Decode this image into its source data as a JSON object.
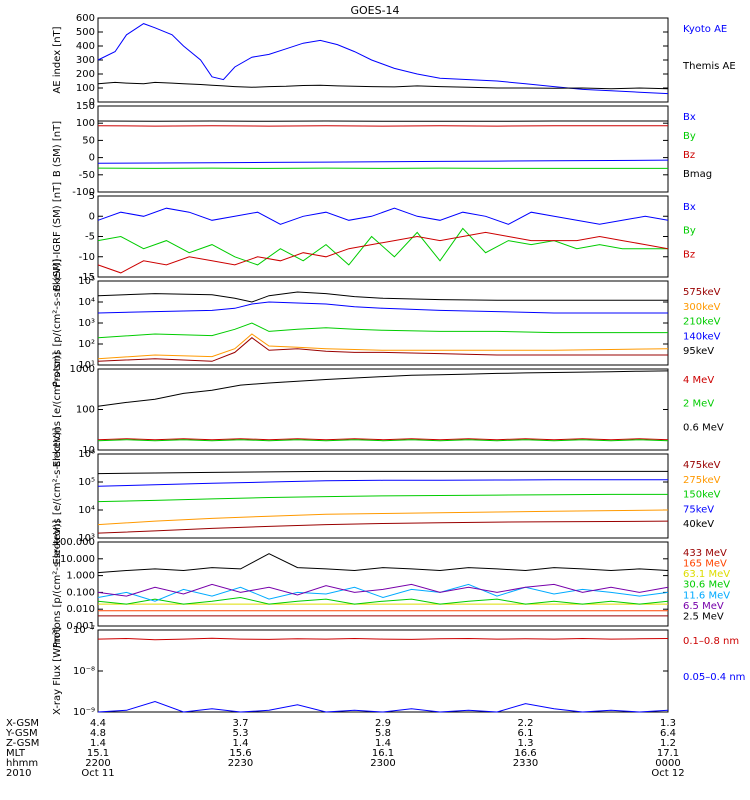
{
  "title": "GOES-14",
  "colors": {
    "black": "#000000",
    "red": "#cc0000",
    "green": "#00cc00",
    "blue": "#0000ff",
    "orange": "#ff9900",
    "cyan": "#00aaff",
    "yellow": "#dddd00",
    "purple": "#7700aa",
    "darkred": "#990000",
    "lightred": "#ff4400"
  },
  "chart_data": [
    {
      "type": "line",
      "panel": "ae",
      "ylabel": "AE index [nT]",
      "ylim": [
        0,
        600
      ],
      "yticks": [
        "600",
        "500",
        "400",
        "300",
        "200",
        "100",
        "0"
      ],
      "x": [
        0.0,
        0.03,
        0.05,
        0.08,
        0.1,
        0.13,
        0.15,
        0.18,
        0.2,
        0.22,
        0.24,
        0.27,
        0.3,
        0.33,
        0.36,
        0.39,
        0.42,
        0.45,
        0.48,
        0.52,
        0.56,
        0.6,
        0.65,
        0.7,
        0.75,
        0.8,
        0.85,
        0.9,
        0.95,
        1.0
      ],
      "series": [
        {
          "name": "Kyoto AE",
          "color": "blue",
          "values": [
            300,
            360,
            480,
            560,
            530,
            480,
            400,
            300,
            180,
            160,
            250,
            320,
            340,
            380,
            420,
            440,
            410,
            360,
            300,
            240,
            200,
            170,
            160,
            150,
            130,
            110,
            90,
            80,
            70,
            60
          ]
        },
        {
          "name": "Themis AE",
          "color": "black",
          "values": [
            130,
            140,
            135,
            130,
            140,
            135,
            130,
            125,
            120,
            115,
            110,
            105,
            110,
            112,
            118,
            120,
            115,
            112,
            110,
            108,
            115,
            110,
            105,
            100,
            100,
            98,
            100,
            95,
            100,
            95
          ]
        }
      ]
    },
    {
      "type": "line",
      "panel": "b",
      "ylabel": "B (SM) [nT]",
      "ylim": [
        -120,
        150
      ],
      "yticks": [
        "150",
        "100",
        "50",
        "0",
        "-50",
        "-100"
      ],
      "x": [
        0,
        0.1,
        0.2,
        0.3,
        0.4,
        0.5,
        0.6,
        0.7,
        0.8,
        0.9,
        1.0
      ],
      "series": [
        {
          "name": "Bx",
          "color": "blue",
          "values": [
            -30,
            -29,
            -28,
            -27,
            -26,
            -25,
            -24,
            -23,
            -22,
            -21,
            -20
          ]
        },
        {
          "name": "By",
          "color": "green",
          "values": [
            -45,
            -46,
            -45,
            -46,
            -45,
            -46,
            -45,
            -46,
            -46,
            -46,
            -46
          ]
        },
        {
          "name": "Bz",
          "color": "red",
          "values": [
            88,
            87,
            88,
            87,
            88,
            87,
            88,
            87,
            88,
            88,
            88
          ]
        },
        {
          "name": "Bmag",
          "color": "black",
          "values": [
            103,
            102,
            103,
            102,
            103,
            102,
            102,
            102,
            103,
            103,
            103
          ]
        }
      ]
    },
    {
      "type": "line",
      "panel": "dbfield",
      "ylabel": "B (SM)-IGRF (SM) [nT]",
      "ylim": [
        -15,
        5
      ],
      "yticks": [
        "5",
        "0",
        "-5",
        "-10",
        "-15"
      ],
      "x": [
        0.0,
        0.04,
        0.08,
        0.12,
        0.16,
        0.2,
        0.24,
        0.28,
        0.32,
        0.36,
        0.4,
        0.44,
        0.48,
        0.52,
        0.56,
        0.6,
        0.64,
        0.68,
        0.72,
        0.76,
        0.8,
        0.84,
        0.88,
        0.92,
        0.96,
        1.0
      ],
      "series": [
        {
          "name": "Bx",
          "color": "blue",
          "values": [
            -1,
            1,
            0,
            2,
            1,
            -1,
            0,
            1,
            -2,
            0,
            1,
            -1,
            0,
            2,
            0,
            -1,
            1,
            0,
            -2,
            1,
            0,
            -1,
            -2,
            -1,
            0,
            -1
          ]
        },
        {
          "name": "By",
          "color": "green",
          "values": [
            -6,
            -5,
            -8,
            -6,
            -9,
            -7,
            -10,
            -12,
            -8,
            -11,
            -7,
            -12,
            -5,
            -10,
            -4,
            -11,
            -3,
            -9,
            -6,
            -7,
            -6,
            -8,
            -7,
            -8,
            -8,
            -8
          ]
        },
        {
          "name": "Bz",
          "color": "red",
          "values": [
            -12,
            -14,
            -11,
            -12,
            -10,
            -11,
            -12,
            -10,
            -11,
            -9,
            -10,
            -8,
            -7,
            -6,
            -5,
            -6,
            -5,
            -4,
            -5,
            -6,
            -6,
            -6,
            -5,
            -6,
            -7,
            -8
          ]
        }
      ]
    },
    {
      "type": "line",
      "panel": "protons1",
      "ylabel": "Protons [p/(cm²-s-sr-keV)]",
      "yscale": "log",
      "ylim": [
        10,
        100000
      ],
      "yticks": [
        "10⁵",
        "10⁴",
        "10³",
        "10²",
        "10¹"
      ],
      "x": [
        0.0,
        0.1,
        0.2,
        0.24,
        0.27,
        0.3,
        0.35,
        0.4,
        0.45,
        0.5,
        0.6,
        0.7,
        0.8,
        0.9,
        1.0
      ],
      "series": [
        {
          "name": "575keV",
          "color": "darkred",
          "values": [
            15,
            20,
            15,
            40,
            200,
            50,
            60,
            45,
            40,
            40,
            35,
            30,
            30,
            30,
            30
          ]
        },
        {
          "name": "300keV",
          "color": "orange",
          "values": [
            20,
            30,
            25,
            60,
            300,
            80,
            70,
            60,
            55,
            50,
            50,
            50,
            50,
            55,
            60
          ]
        },
        {
          "name": "210keV",
          "color": "green",
          "values": [
            200,
            300,
            250,
            500,
            1000,
            400,
            500,
            600,
            500,
            450,
            400,
            400,
            350,
            350,
            350
          ]
        },
        {
          "name": "140keV",
          "color": "blue",
          "values": [
            3000,
            3500,
            4000,
            5000,
            8000,
            10000,
            9000,
            8000,
            6000,
            5000,
            4000,
            3500,
            3000,
            3000,
            3000
          ]
        },
        {
          "name": "95keV",
          "color": "black",
          "values": [
            20000,
            25000,
            22000,
            15000,
            10000,
            20000,
            30000,
            25000,
            18000,
            15000,
            13000,
            12000,
            12000,
            12000,
            12000
          ]
        }
      ]
    },
    {
      "type": "line",
      "panel": "electrons1",
      "ylabel": "Electrons [e/(cm²-s-sr)]",
      "yscale": "log",
      "ylim": [
        10,
        1000
      ],
      "yticks": [
        "1000",
        "100",
        "10"
      ],
      "x": [
        0.0,
        0.05,
        0.1,
        0.15,
        0.2,
        0.25,
        0.3,
        0.35,
        0.4,
        0.45,
        0.5,
        0.55,
        0.6,
        0.65,
        0.7,
        0.75,
        0.8,
        0.85,
        0.9,
        0.95,
        1.0
      ],
      "series": [
        {
          "name": "4 MeV",
          "color": "red",
          "values": [
            18,
            19,
            18,
            19,
            18,
            19,
            18,
            19,
            18,
            19,
            18,
            19,
            18,
            19,
            18,
            19,
            18,
            19,
            18,
            19,
            18
          ]
        },
        {
          "name": "2 MeV",
          "color": "green",
          "values": [
            17,
            18,
            17,
            18,
            17,
            18,
            17,
            18,
            17,
            18,
            17,
            18,
            17,
            18,
            17,
            18,
            17,
            18,
            17,
            18,
            17
          ]
        },
        {
          "name": "0.6 MeV",
          "color": "black",
          "values": [
            120,
            150,
            180,
            250,
            300,
            400,
            450,
            500,
            550,
            600,
            650,
            700,
            720,
            750,
            780,
            800,
            820,
            840,
            860,
            880,
            900
          ]
        }
      ]
    },
    {
      "type": "line",
      "panel": "electrons2",
      "ylabel": "Electrons [e/(cm²-s-sr-keV)]",
      "yscale": "log",
      "ylim": [
        1000,
        1000000
      ],
      "yticks": [
        "10⁶",
        "10⁵",
        "10⁴",
        "10³"
      ],
      "x": [
        0,
        0.1,
        0.2,
        0.3,
        0.4,
        0.5,
        0.6,
        0.7,
        0.8,
        0.9,
        1.0
      ],
      "series": [
        {
          "name": "475keV",
          "color": "darkred",
          "values": [
            1500,
            1800,
            2200,
            2600,
            3000,
            3300,
            3500,
            3700,
            3800,
            3900,
            4000
          ]
        },
        {
          "name": "275keV",
          "color": "orange",
          "values": [
            3000,
            4000,
            5000,
            6000,
            7000,
            7500,
            8000,
            8500,
            9000,
            9500,
            10000
          ]
        },
        {
          "name": "150keV",
          "color": "green",
          "values": [
            20000,
            22000,
            25000,
            28000,
            30000,
            32000,
            33000,
            34000,
            35000,
            36000,
            36000
          ]
        },
        {
          "name": "75keV",
          "color": "blue",
          "values": [
            70000,
            80000,
            90000,
            100000,
            110000,
            115000,
            115000,
            118000,
            120000,
            120000,
            120000
          ]
        },
        {
          "name": "40keV",
          "color": "black",
          "values": [
            200000,
            210000,
            220000,
            230000,
            240000,
            240000,
            240000,
            240000,
            240000,
            240000,
            240000
          ]
        }
      ]
    },
    {
      "type": "line",
      "panel": "protons2",
      "ylabel": "Protons [p/(cm²-s-sr-keV)]",
      "yscale": "log",
      "ylim": [
        0.001,
        100
      ],
      "yticks": [
        "100.000",
        "10.000",
        "1.000",
        "0.100",
        "0.010",
        "0.001"
      ],
      "x": [
        0.0,
        0.05,
        0.1,
        0.15,
        0.2,
        0.25,
        0.3,
        0.35,
        0.4,
        0.45,
        0.5,
        0.55,
        0.6,
        0.65,
        0.7,
        0.75,
        0.8,
        0.85,
        0.9,
        0.95,
        1.0
      ],
      "series": [
        {
          "name": "433 MeV",
          "color": "darkred",
          "values": [
            0.004,
            0.004,
            0.004,
            0.004,
            0.004,
            0.004,
            0.004,
            0.004,
            0.004,
            0.004,
            0.004,
            0.004,
            0.004,
            0.004,
            0.004,
            0.004,
            0.004,
            0.004,
            0.004,
            0.004,
            0.004
          ]
        },
        {
          "name": "165 MeV",
          "color": "lightred",
          "values": [
            0.008,
            0.008,
            0.008,
            0.008,
            0.008,
            0.008,
            0.008,
            0.008,
            0.008,
            0.008,
            0.008,
            0.008,
            0.008,
            0.008,
            0.008,
            0.008,
            0.008,
            0.008,
            0.008,
            0.008,
            0.008
          ]
        },
        {
          "name": "63.1 MeV",
          "color": "yellow",
          "values": [
            0.02,
            0.02,
            0.02,
            0.02,
            0.02,
            0.02,
            0.02,
            0.02,
            0.02,
            0.02,
            0.02,
            0.02,
            0.02,
            0.02,
            0.02,
            0.02,
            0.02,
            0.02,
            0.02,
            0.02,
            0.02
          ]
        },
        {
          "name": "30.6 MeV",
          "color": "green",
          "values": [
            0.03,
            0.02,
            0.04,
            0.02,
            0.03,
            0.05,
            0.02,
            0.03,
            0.04,
            0.02,
            0.03,
            0.04,
            0.02,
            0.03,
            0.04,
            0.02,
            0.03,
            0.02,
            0.03,
            0.02,
            0.03
          ]
        },
        {
          "name": "11.6 MeV",
          "color": "cyan",
          "values": [
            0.05,
            0.1,
            0.03,
            0.15,
            0.06,
            0.2,
            0.04,
            0.1,
            0.08,
            0.2,
            0.05,
            0.15,
            0.1,
            0.3,
            0.06,
            0.2,
            0.08,
            0.15,
            0.1,
            0.06,
            0.1
          ]
        },
        {
          "name": "6.5 MeV",
          "color": "purple",
          "values": [
            0.1,
            0.06,
            0.2,
            0.08,
            0.3,
            0.1,
            0.2,
            0.07,
            0.25,
            0.1,
            0.15,
            0.3,
            0.1,
            0.2,
            0.1,
            0.2,
            0.3,
            0.1,
            0.2,
            0.1,
            0.2
          ]
        },
        {
          "name": "2.5 MeV",
          "color": "black",
          "values": [
            1.5,
            2.0,
            2.5,
            2.0,
            3.0,
            2.5,
            20,
            3.0,
            2.5,
            2.0,
            3.0,
            2.5,
            2.0,
            3.0,
            2.5,
            2.0,
            3.0,
            2.5,
            2.0,
            2.5,
            2.0
          ]
        }
      ]
    },
    {
      "type": "line",
      "panel": "xray",
      "ylabel": "X-ray Flux [W/m²]",
      "yscale": "log",
      "ylim": [
        1e-09,
        1e-07
      ],
      "yticks": [
        "10⁻⁷",
        "10⁻⁸",
        "10⁻⁹"
      ],
      "x": [
        0.0,
        0.05,
        0.1,
        0.15,
        0.2,
        0.25,
        0.3,
        0.35,
        0.4,
        0.45,
        0.5,
        0.55,
        0.6,
        0.65,
        0.7,
        0.75,
        0.8,
        0.85,
        0.9,
        0.95,
        1.0
      ],
      "series": [
        {
          "name": "0.1–0.8 nm",
          "color": "red",
          "values": [
            6e-08,
            6.2e-08,
            5.8e-08,
            6e-08,
            6.3e-08,
            6e-08,
            5.9e-08,
            6.1e-08,
            6e-08,
            6.2e-08,
            6e-08,
            5.9e-08,
            6.1e-08,
            6.2e-08,
            6e-08,
            6.1e-08,
            6e-08,
            6.2e-08,
            6e-08,
            6.1e-08,
            6.2e-08
          ]
        },
        {
          "name": "0.05–0.4 nm",
          "color": "blue",
          "values": [
            1e-09,
            1.1e-09,
            1.8e-09,
            1e-09,
            1.2e-09,
            1e-09,
            1.1e-09,
            1.5e-09,
            1e-09,
            1.1e-09,
            1e-09,
            1.2e-09,
            1e-09,
            1.1e-09,
            1e-09,
            1.6e-09,
            1.2e-09,
            1e-09,
            1.1e-09,
            1e-09,
            1.1e-09
          ]
        }
      ]
    }
  ],
  "xaxis": {
    "rows": [
      {
        "label": "X-GSM",
        "values": [
          "4.4",
          "3.7",
          "2.9",
          "2.2",
          "1.3"
        ]
      },
      {
        "label": "Y-GSM",
        "values": [
          "4.8",
          "5.3",
          "5.8",
          "6.1",
          "6.4"
        ]
      },
      {
        "label": "Z-GSM",
        "values": [
          "1.4",
          "1.4",
          "1.4",
          "1.3",
          "1.2"
        ]
      },
      {
        "label": "MLT",
        "values": [
          "15.1",
          "15.6",
          "16.1",
          "16.6",
          "17.1"
        ]
      },
      {
        "label": "hhmm",
        "values": [
          "2200",
          "2230",
          "2300",
          "2330",
          "0000"
        ]
      },
      {
        "label": "2010",
        "values": [
          "Oct 11",
          "",
          "",
          "",
          "Oct 12"
        ]
      }
    ]
  }
}
